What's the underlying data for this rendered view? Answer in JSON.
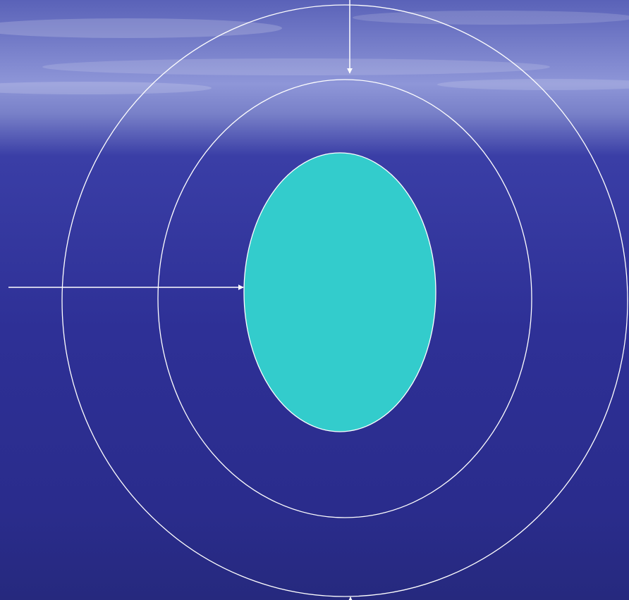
{
  "colors": {
    "sky_top": "#5a62b8",
    "sky_haze": "#8e96d8",
    "horizon": "#7880c8",
    "sea_upper": "#3a3ea6",
    "sea_mid": "#2e3096",
    "sea_lower": "#2a2c8c",
    "sea_bottom": "#26297e",
    "stroke": "#ffffff",
    "core_fill": "#33cccc"
  },
  "diagram": {
    "shapes": [
      "outer-ring",
      "middle-ring",
      "inner-core"
    ],
    "arrows": [
      "top-arrow",
      "left-arrow",
      "bottom-arrow"
    ]
  }
}
